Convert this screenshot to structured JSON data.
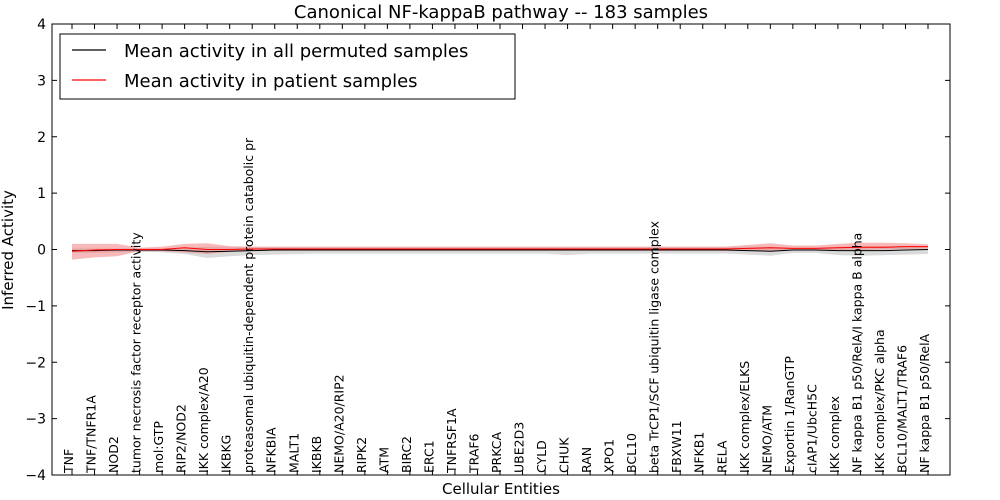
{
  "chart_data": {
    "type": "line",
    "title": "Canonical NF-kappaB pathway -- 183 samples",
    "xlabel": "Cellular Entities",
    "ylabel": "Inferred Activity",
    "ylim": [
      -4,
      4
    ],
    "yticks": [
      4,
      3,
      2,
      1,
      0,
      -1,
      -2,
      -3,
      -4
    ],
    "ytick_labels": [
      "4",
      "3",
      "2",
      "1",
      "0",
      "−1",
      "−2",
      "−3",
      "−4"
    ],
    "legend_position": "top-left",
    "categories": [
      "TNF",
      "TNF/TNFR1A",
      "NOD2",
      "tumor necrosis factor receptor activity",
      "mol:GTP",
      "RIP2/NOD2",
      "IKK complex/A20",
      "IKBKG",
      "proteasomal ubiquitin-dependent protein catabolic pr",
      "NFKBIA",
      "MALT1",
      "IKBKB",
      "NEMO/A20/RIP2",
      "RIPK2",
      "ATM",
      "BIRC2",
      "ERC1",
      "TNFRSF1A",
      "TRAF6",
      "PRKCA",
      "UBE2D3",
      "CYLD",
      "CHUK",
      "RAN",
      "XPO1",
      "BCL10",
      "beta TrCP1/SCF ubiquitin ligase complex",
      "FBXW11",
      "NFKB1",
      "RELA",
      "IKK complex/ELKS",
      "NEMO/ATM",
      "Exportin 1/RanGTP",
      "cIAP1/UbcH5C",
      "IKK complex",
      "NF kappa B1 p50/RelA/I kappa B alpha",
      "IKK complex/PKC alpha",
      "BCL10/MALT1/TRAF6",
      "NF kappa B1 p50/RelA"
    ],
    "series": [
      {
        "name": "Mean activity in all permuted samples",
        "color": "#000000",
        "band_color": "#bbbbbb",
        "values": [
          -0.02,
          -0.02,
          -0.01,
          -0.01,
          -0.01,
          -0.02,
          -0.04,
          -0.03,
          -0.02,
          -0.01,
          -0.01,
          -0.01,
          -0.01,
          -0.01,
          -0.01,
          -0.01,
          -0.01,
          -0.01,
          -0.01,
          -0.01,
          -0.01,
          -0.01,
          -0.01,
          -0.01,
          -0.01,
          -0.01,
          -0.01,
          -0.01,
          -0.01,
          -0.01,
          -0.02,
          -0.03,
          -0.01,
          -0.01,
          -0.02,
          -0.02,
          -0.02,
          -0.01,
          0.0
        ],
        "band_low": [
          -0.06,
          -0.06,
          -0.05,
          -0.04,
          -0.05,
          -0.08,
          -0.15,
          -0.12,
          -0.1,
          -0.09,
          -0.08,
          -0.07,
          -0.07,
          -0.07,
          -0.07,
          -0.07,
          -0.07,
          -0.07,
          -0.07,
          -0.07,
          -0.07,
          -0.07,
          -0.1,
          -0.07,
          -0.07,
          -0.07,
          -0.07,
          -0.07,
          -0.07,
          -0.07,
          -0.09,
          -0.11,
          -0.06,
          -0.06,
          -0.1,
          -0.11,
          -0.1,
          -0.09,
          -0.08
        ],
        "band_high": [
          0.02,
          0.02,
          0.02,
          0.02,
          0.02,
          0.03,
          0.05,
          0.04,
          0.04,
          0.04,
          0.04,
          0.04,
          0.04,
          0.04,
          0.04,
          0.04,
          0.04,
          0.04,
          0.04,
          0.04,
          0.04,
          0.04,
          0.04,
          0.04,
          0.04,
          0.04,
          0.04,
          0.04,
          0.04,
          0.04,
          0.05,
          0.05,
          0.03,
          0.03,
          0.05,
          0.06,
          0.06,
          0.05,
          0.04
        ]
      },
      {
        "name": "Mean activity in patient samples",
        "color": "#ff0000",
        "band_color": "#f08080",
        "values": [
          -0.03,
          -0.01,
          0.0,
          0.0,
          0.0,
          0.03,
          0.0,
          0.0,
          0.01,
          0.01,
          0.01,
          0.01,
          0.01,
          0.01,
          0.01,
          0.01,
          0.01,
          0.01,
          0.01,
          0.01,
          0.01,
          0.01,
          0.01,
          0.01,
          0.01,
          0.01,
          0.01,
          0.01,
          0.01,
          0.01,
          0.02,
          0.03,
          0.02,
          0.02,
          0.03,
          0.04,
          0.04,
          0.05,
          0.05
        ],
        "band_low": [
          -0.18,
          -0.14,
          -0.12,
          -0.03,
          -0.03,
          -0.05,
          -0.08,
          -0.04,
          -0.02,
          -0.02,
          -0.02,
          -0.02,
          -0.02,
          -0.02,
          -0.02,
          -0.02,
          -0.02,
          -0.02,
          -0.02,
          -0.02,
          -0.02,
          -0.02,
          -0.02,
          -0.02,
          -0.02,
          -0.02,
          -0.02,
          -0.02,
          -0.02,
          -0.02,
          -0.02,
          -0.03,
          -0.01,
          -0.01,
          -0.01,
          -0.01,
          0.0,
          0.01,
          0.02
        ],
        "band_high": [
          0.1,
          0.1,
          0.1,
          0.03,
          0.05,
          0.1,
          0.11,
          0.06,
          0.05,
          0.05,
          0.05,
          0.05,
          0.05,
          0.05,
          0.05,
          0.05,
          0.05,
          0.05,
          0.05,
          0.05,
          0.05,
          0.05,
          0.05,
          0.05,
          0.05,
          0.05,
          0.05,
          0.05,
          0.05,
          0.05,
          0.08,
          0.11,
          0.07,
          0.07,
          0.1,
          0.12,
          0.12,
          0.11,
          0.09
        ]
      }
    ]
  }
}
